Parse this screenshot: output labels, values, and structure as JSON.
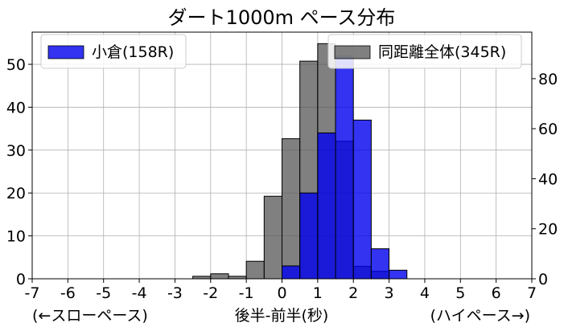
{
  "chart_data": {
    "type": "bar",
    "title": "ダート1000m ペース分布",
    "xlabel": "後半-前半(秒)",
    "xlabel_left": "(←スローペース)",
    "xlabel_right": "(ハイペース→)",
    "xlim": [
      -7,
      7
    ],
    "xticks": [
      "-7",
      "-6",
      "-5",
      "-4",
      "-3",
      "-2",
      "-1",
      "0",
      "1",
      "2",
      "3",
      "4",
      "5",
      "6",
      "7"
    ],
    "grid": true,
    "bin_edges": [
      -2.5,
      -2.0,
      -1.5,
      -1.0,
      -0.5,
      0.0,
      0.5,
      1.0,
      1.5,
      2.0,
      2.5,
      3.0,
      3.5
    ],
    "series": [
      {
        "name": "小倉(158R)",
        "axis": "left",
        "color": "#0000ee",
        "values": [
          0,
          0,
          0,
          0,
          0,
          3,
          20,
          34,
          52,
          37,
          7,
          2
        ]
      },
      {
        "name": "同距離全体(345R)",
        "axis": "right",
        "color": "#555555",
        "values": [
          1,
          2,
          1,
          7,
          33,
          56,
          87,
          94,
          55,
          5,
          3,
          0
        ]
      }
    ],
    "y_left": {
      "lim": [
        0,
        57.5
      ],
      "ticks": [
        "0",
        "10",
        "20",
        "30",
        "40",
        "50"
      ]
    },
    "y_right": {
      "lim": [
        0,
        98.6
      ],
      "ticks": [
        "0",
        "20",
        "40",
        "60",
        "80"
      ]
    },
    "legend_left_placement": "upper-left",
    "legend_right_placement": "upper-right"
  }
}
